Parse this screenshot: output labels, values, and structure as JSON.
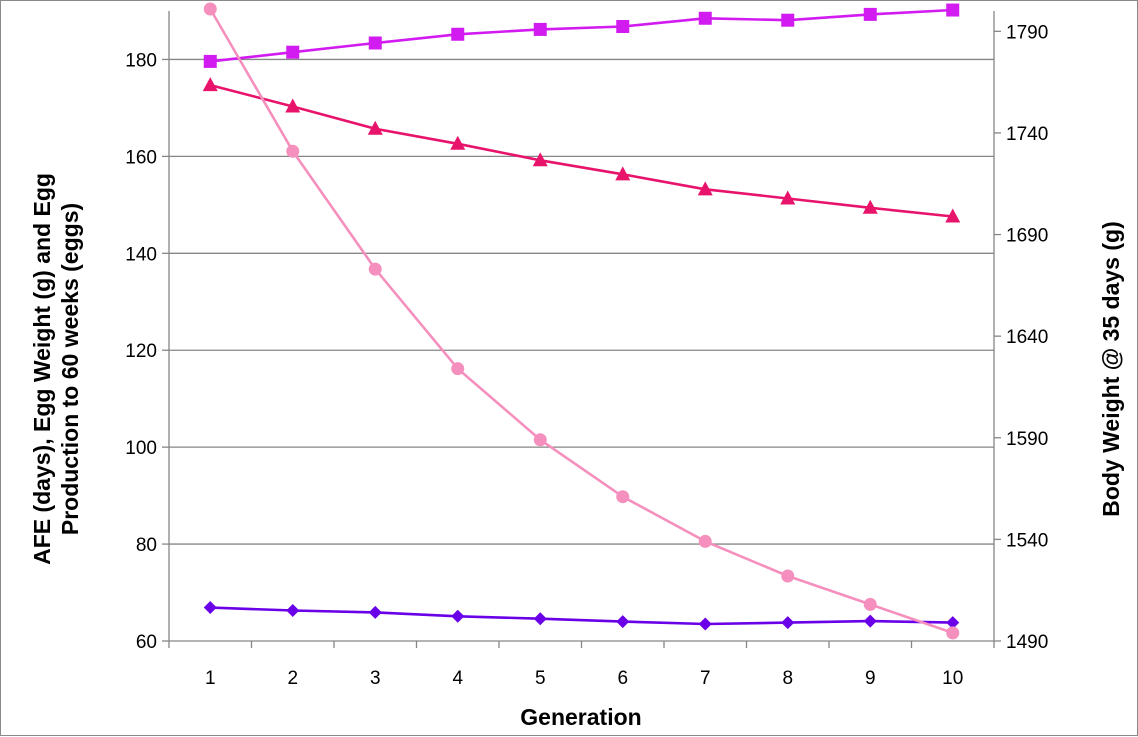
{
  "chart_data": {
    "type": "line",
    "xlabel": "Generation",
    "ylabel_lines": [
      "AFE (days), Egg Weight (g) and Egg",
      "Production to 60 weeks (eggs)"
    ],
    "y2label": "Body Weight @ 35 days (g)",
    "categories": [
      "1",
      "2",
      "3",
      "4",
      "5",
      "6",
      "7",
      "8",
      "9",
      "10"
    ],
    "ylim": [
      60,
      190
    ],
    "yticks": [
      60,
      80,
      100,
      120,
      140,
      160,
      180
    ],
    "y2lim": [
      1490,
      1800
    ],
    "y2ticks": [
      1490,
      1540,
      1590,
      1640,
      1690,
      1740,
      1790
    ],
    "grid": true,
    "legend": "none",
    "series": [
      {
        "axis": "left",
        "marker": "diamond",
        "color": "#6a00e8",
        "values": [
          66.9,
          66.3,
          65.9,
          65.1,
          64.6,
          64.0,
          63.5,
          63.8,
          64.1,
          63.8
        ]
      },
      {
        "axis": "left",
        "marker": "square",
        "color": "#d21bf0",
        "values": [
          179.6,
          181.5,
          183.4,
          185.2,
          186.2,
          186.8,
          188.5,
          188.1,
          189.3,
          190.2
        ]
      },
      {
        "axis": "left",
        "marker": "triangle",
        "color": "#e8146c",
        "values": [
          174.7,
          170.3,
          165.7,
          162.6,
          159.2,
          156.3,
          153.2,
          151.3,
          149.4,
          147.6
        ]
      },
      {
        "axis": "right",
        "marker": "circle",
        "color": "#f58fbd",
        "values": [
          1801,
          1731,
          1673,
          1624,
          1589,
          1561,
          1539,
          1522,
          1508,
          1494
        ]
      }
    ]
  }
}
